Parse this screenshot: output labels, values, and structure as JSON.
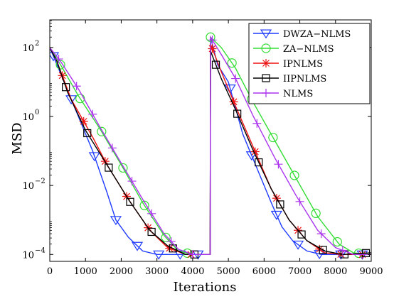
{
  "chart_data": {
    "type": "line",
    "title": "",
    "xlabel": "Iterations",
    "ylabel": "MSD",
    "xlim": [
      0,
      9000
    ],
    "ylim_log10": [
      -4.2,
      2.8
    ],
    "yscale": "log",
    "grid": false,
    "legend_position": "top-right",
    "x_ticks": [
      0,
      1000,
      2000,
      3000,
      4000,
      5000,
      6000,
      7000,
      8000,
      9000
    ],
    "x_tick_labels": [
      "0",
      "1000",
      "2000",
      "3000",
      "4000",
      "5000",
      "6000",
      "7000",
      "8000",
      "9000"
    ],
    "y_ticks_log10": [
      -4,
      -2,
      0,
      2
    ],
    "y_tick_bases": [
      "10",
      "10",
      "10",
      "10"
    ],
    "y_tick_exponents": [
      "−4",
      "−2",
      "0",
      "2"
    ],
    "series": [
      {
        "name": "DWZA−NLMS",
        "color": "#1f3bff",
        "marker": "triangle-down",
        "points": [
          [
            0,
            2.0
          ],
          [
            400,
            1.0
          ],
          [
            800,
            0.0
          ],
          [
            1200,
            -1.0
          ],
          [
            1600,
            -2.2
          ],
          [
            1850,
            -3.0
          ],
          [
            2200,
            -3.5
          ],
          [
            2600,
            -3.9
          ],
          [
            3000,
            -4.0
          ],
          [
            4000,
            -4.0
          ],
          [
            4490,
            -4.0
          ],
          [
            4500,
            2.3
          ],
          [
            4700,
            1.5
          ],
          [
            5000,
            1.0
          ],
          [
            5400,
            -0.5
          ],
          [
            5800,
            -1.5
          ],
          [
            6200,
            -2.5
          ],
          [
            6500,
            -3.2
          ],
          [
            6800,
            -3.6
          ],
          [
            7200,
            -3.9
          ],
          [
            7600,
            -4.0
          ],
          [
            9000,
            -4.0
          ]
        ],
        "markers_x": [
          100,
          600,
          1250,
          1850,
          2450,
          3050,
          3650,
          4150,
          5050,
          5650,
          6350,
          6950,
          7550,
          8150,
          8750
        ]
      },
      {
        "name": "ZA−NLMS",
        "color": "#33dd33",
        "marker": "circle",
        "points": [
          [
            0,
            2.0
          ],
          [
            300,
            1.5
          ],
          [
            800,
            0.6
          ],
          [
            1400,
            -0.35
          ],
          [
            2000,
            -1.4
          ],
          [
            2600,
            -2.5
          ],
          [
            3200,
            -3.45
          ],
          [
            3600,
            -3.9
          ],
          [
            4000,
            -4.0
          ],
          [
            4490,
            -4.0
          ],
          [
            4500,
            2.3
          ],
          [
            4800,
            2.0
          ],
          [
            5200,
            1.4
          ],
          [
            5700,
            0.4
          ],
          [
            6300,
            -0.7
          ],
          [
            6900,
            -1.8
          ],
          [
            7500,
            -2.9
          ],
          [
            8100,
            -3.7
          ],
          [
            8500,
            -3.95
          ],
          [
            9000,
            -4.0
          ]
        ],
        "markers_x": [
          300,
          850,
          1450,
          2050,
          2650,
          3250,
          3850,
          4500,
          5100,
          5650,
          6250,
          6850,
          7450,
          8050,
          8650
        ]
      },
      {
        "name": "IPNLMS",
        "color": "#ee1111",
        "marker": "star",
        "points": [
          [
            0,
            2.0
          ],
          [
            200,
            1.6
          ],
          [
            600,
            0.5
          ],
          [
            1200,
            -0.6
          ],
          [
            1600,
            -1.4
          ],
          [
            2200,
            -2.4
          ],
          [
            2800,
            -3.3
          ],
          [
            3300,
            -3.8
          ],
          [
            3800,
            -4.0
          ],
          [
            4490,
            -4.0
          ],
          [
            4500,
            2.1
          ],
          [
            4800,
            1.3
          ],
          [
            5200,
            0.3
          ],
          [
            5700,
            -0.9
          ],
          [
            6200,
            -2.1
          ],
          [
            6700,
            -3.0
          ],
          [
            7200,
            -3.6
          ],
          [
            7700,
            -3.95
          ],
          [
            8200,
            -4.0
          ],
          [
            9000,
            -4.0
          ]
        ],
        "markers_x": [
          350,
          950,
          1550,
          2150,
          2750,
          3350,
          3950,
          4550,
          5150,
          5750,
          6350,
          6950,
          7550,
          8150,
          8750
        ]
      },
      {
        "name": "IIPNLMS",
        "color": "#000000",
        "marker": "square",
        "points": [
          [
            0,
            2.0
          ],
          [
            200,
            1.6
          ],
          [
            500,
            0.7
          ],
          [
            1000,
            -0.4
          ],
          [
            1600,
            -1.4
          ],
          [
            2200,
            -2.4
          ],
          [
            2800,
            -3.3
          ],
          [
            3300,
            -3.75
          ],
          [
            3800,
            -4.0
          ],
          [
            4490,
            -4.0
          ],
          [
            4500,
            1.9
          ],
          [
            4800,
            1.1
          ],
          [
            5200,
            0.2
          ],
          [
            5700,
            -1.0
          ],
          [
            6200,
            -2.1
          ],
          [
            6700,
            -3.0
          ],
          [
            7200,
            -3.6
          ],
          [
            7700,
            -3.9
          ],
          [
            8200,
            -4.0
          ],
          [
            9000,
            -3.95
          ]
        ],
        "markers_x": [
          450,
          1050,
          1650,
          2250,
          2850,
          3450,
          4050,
          4650,
          5250,
          5850,
          6450,
          7050,
          7650,
          8250,
          8850
        ]
      },
      {
        "name": "NLMS",
        "color": "#aa33ee",
        "marker": "plus",
        "points": [
          [
            0,
            2.0
          ],
          [
            300,
            1.6
          ],
          [
            800,
            0.8
          ],
          [
            1400,
            -0.3
          ],
          [
            2000,
            -1.35
          ],
          [
            2600,
            -2.4
          ],
          [
            3200,
            -3.4
          ],
          [
            3600,
            -3.85
          ],
          [
            4000,
            -4.0
          ],
          [
            4490,
            -4.0
          ],
          [
            4500,
            2.3
          ],
          [
            4800,
            1.8
          ],
          [
            5200,
            1.1
          ],
          [
            5700,
            0.0
          ],
          [
            6300,
            -1.2
          ],
          [
            6900,
            -2.3
          ],
          [
            7500,
            -3.3
          ],
          [
            8000,
            -3.8
          ],
          [
            8500,
            -4.0
          ],
          [
            9000,
            -4.0
          ]
        ],
        "markers_x": [
          250,
          750,
          1200,
          1750,
          2300,
          2850,
          3400,
          4000,
          4550,
          5200,
          5800,
          6400,
          7000,
          7600,
          8200
        ]
      }
    ]
  }
}
